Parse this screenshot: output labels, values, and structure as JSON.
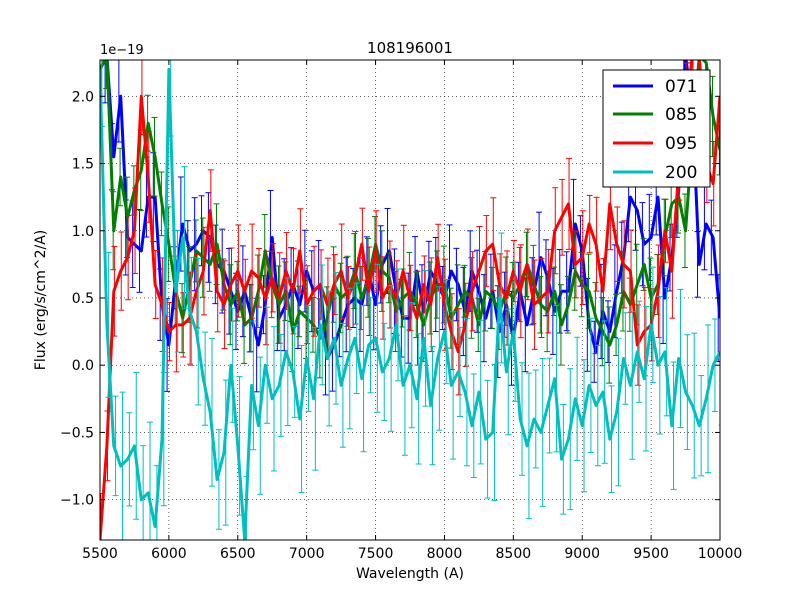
{
  "chart_data": {
    "type": "line",
    "title": "108196001",
    "xlabel": "Wavelength (A)",
    "ylabel": "Flux (erg/s/cm^2/A)",
    "y_offset_text": "1e−19",
    "xlim": [
      5500,
      10000
    ],
    "ylim": [
      -1.3,
      2.27
    ],
    "x_ticks": [
      5500,
      6000,
      6500,
      7000,
      7500,
      8000,
      8500,
      9000,
      9500,
      10000
    ],
    "x_tick_labels": [
      "5500",
      "6000",
      "6500",
      "7000",
      "7500",
      "8000",
      "8500",
      "9000",
      "9500",
      "10000"
    ],
    "y_ticks": [
      -1.0,
      -0.5,
      0.0,
      0.5,
      1.0,
      1.5,
      2.0
    ],
    "y_tick_labels": [
      "−1.0",
      "−0.5",
      "0.0",
      "0.5",
      "1.0",
      "1.5",
      "2.0"
    ],
    "grid": true,
    "legend_position": "top-right",
    "series": [
      {
        "name": "071",
        "color": "#0000ff",
        "x": [
          5500,
          5550,
          5600,
          5650,
          5700,
          5750,
          5800,
          5850,
          5900,
          5950,
          6000,
          6050,
          6100,
          6150,
          6200,
          6250,
          6300,
          6350,
          6400,
          6450,
          6500,
          6550,
          6600,
          6650,
          6700,
          6750,
          6800,
          6850,
          6900,
          6950,
          7000,
          7050,
          7100,
          7150,
          7200,
          7250,
          7300,
          7350,
          7400,
          7450,
          7500,
          7550,
          7600,
          7650,
          7700,
          7750,
          7800,
          7850,
          7900,
          7950,
          8000,
          8050,
          8100,
          8150,
          8200,
          8250,
          8300,
          8350,
          8400,
          8450,
          8500,
          8550,
          8600,
          8650,
          8700,
          8750,
          8800,
          8850,
          8900,
          8950,
          9000,
          9050,
          9100,
          9150,
          9200,
          9250,
          9300,
          9350,
          9400,
          9450,
          9500,
          9550,
          9600,
          9650,
          9700,
          9750,
          9800,
          9850,
          9900,
          9950,
          10000
        ],
        "values": [
          2.2,
          2.3,
          1.55,
          2.0,
          0.95,
          0.9,
          0.85,
          1.25,
          1.25,
          0.45,
          0.15,
          0.65,
          1.05,
          0.85,
          0.9,
          1.0,
          0.95,
          0.75,
          0.7,
          0.55,
          0.4,
          0.55,
          0.35,
          0.15,
          0.45,
          0.95,
          0.35,
          0.45,
          0.6,
          0.45,
          0.7,
          0.55,
          0.6,
          0.05,
          0.15,
          0.3,
          0.45,
          0.5,
          0.45,
          0.7,
          0.45,
          0.75,
          0.85,
          0.55,
          0.35,
          0.35,
          0.7,
          0.4,
          0.7,
          0.6,
          0.5,
          0.7,
          0.6,
          0.4,
          0.7,
          0.55,
          0.35,
          0.55,
          0.25,
          0.45,
          0.2,
          0.55,
          0.3,
          0.55,
          0.8,
          0.65,
          0.4,
          0.55,
          0.55,
          1.05,
          0.85,
          0.3,
          0.1,
          0.4,
          0.25,
          0.55,
          0.8,
          1.25,
          1.15,
          0.9,
          0.95,
          1.25,
          0.5,
          0.8,
          1.3,
          2.3,
          1.9,
          0.75,
          1.05,
          0.95,
          0.35
        ]
      },
      {
        "name": "085",
        "color": "#008000",
        "x": [
          5500,
          5550,
          5600,
          5650,
          5700,
          5750,
          5800,
          5850,
          5900,
          5950,
          6000,
          6050,
          6100,
          6150,
          6200,
          6250,
          6300,
          6350,
          6400,
          6450,
          6500,
          6550,
          6600,
          6650,
          6700,
          6750,
          6800,
          6850,
          6900,
          6950,
          7000,
          7050,
          7100,
          7150,
          7200,
          7250,
          7300,
          7350,
          7400,
          7450,
          7500,
          7550,
          7600,
          7650,
          7700,
          7750,
          7800,
          7850,
          7900,
          7950,
          8000,
          8050,
          8100,
          8150,
          8200,
          8250,
          8300,
          8350,
          8400,
          8450,
          8500,
          8550,
          8600,
          8650,
          8700,
          8750,
          8800,
          8850,
          8900,
          8950,
          9000,
          9050,
          9100,
          9150,
          9200,
          9250,
          9300,
          9350,
          9400,
          9450,
          9500,
          9550,
          9600,
          9650,
          9700,
          9750,
          9800,
          9850,
          9900,
          9950,
          10000
        ],
        "values": [
          2.2,
          2.3,
          1.0,
          1.4,
          1.1,
          1.3,
          1.45,
          1.8,
          1.55,
          1.2,
          0.9,
          0.55,
          0.35,
          0.6,
          0.85,
          0.8,
          0.75,
          0.9,
          0.6,
          0.45,
          0.55,
          0.3,
          0.35,
          0.55,
          0.85,
          0.6,
          0.45,
          0.55,
          0.25,
          0.4,
          0.35,
          0.3,
          0.2,
          0.35,
          0.6,
          0.5,
          0.55,
          0.7,
          0.5,
          0.65,
          0.9,
          0.7,
          0.65,
          0.4,
          0.5,
          0.55,
          0.45,
          0.3,
          0.5,
          0.6,
          0.6,
          0.35,
          0.45,
          0.55,
          0.5,
          0.3,
          0.55,
          0.5,
          0.4,
          0.55,
          0.5,
          0.6,
          0.75,
          0.6,
          0.45,
          0.4,
          0.55,
          0.3,
          0.45,
          0.7,
          0.6,
          0.55,
          0.35,
          0.25,
          0.15,
          0.3,
          0.55,
          0.45,
          0.6,
          0.75,
          0.5,
          0.6,
          0.95,
          1.2,
          1.25,
          1.0,
          1.7,
          2.3,
          2.25,
          1.85,
          1.6
        ]
      },
      {
        "name": "095",
        "color": "#ff0000",
        "x": [
          5500,
          5550,
          5600,
          5650,
          5700,
          5750,
          5800,
          5850,
          5900,
          5950,
          6000,
          6050,
          6100,
          6150,
          6200,
          6250,
          6300,
          6350,
          6400,
          6450,
          6500,
          6550,
          6600,
          6650,
          6700,
          6750,
          6800,
          6850,
          6900,
          6950,
          7000,
          7050,
          7100,
          7150,
          7200,
          7250,
          7300,
          7350,
          7400,
          7450,
          7500,
          7550,
          7600,
          7650,
          7700,
          7750,
          7800,
          7850,
          7900,
          7950,
          8000,
          8050,
          8100,
          8150,
          8200,
          8250,
          8300,
          8350,
          8400,
          8450,
          8500,
          8550,
          8600,
          8650,
          8700,
          8750,
          8800,
          8850,
          8900,
          8950,
          9000,
          9050,
          9100,
          9150,
          9200,
          9250,
          9300,
          9350,
          9400,
          9450,
          9500,
          9550,
          9600,
          9650,
          9700,
          9750,
          9800,
          9850,
          9900,
          9950,
          10000
        ],
        "values": [
          -1.3,
          -0.6,
          0.55,
          0.7,
          0.8,
          1.0,
          2.0,
          1.4,
          0.6,
          0.45,
          0.25,
          0.3,
          0.3,
          0.35,
          0.55,
          0.7,
          1.15,
          0.55,
          0.45,
          0.6,
          0.7,
          0.55,
          0.7,
          0.65,
          0.5,
          0.65,
          0.5,
          0.7,
          0.55,
          0.85,
          0.45,
          0.55,
          0.6,
          0.45,
          0.6,
          0.7,
          0.5,
          0.65,
          0.9,
          0.55,
          0.85,
          0.5,
          0.6,
          0.5,
          0.7,
          0.5,
          0.35,
          0.6,
          0.45,
          0.8,
          0.45,
          0.25,
          0.1,
          0.3,
          0.55,
          0.7,
          0.85,
          0.9,
          0.6,
          0.5,
          0.7,
          0.55,
          0.75,
          0.45,
          0.5,
          0.55,
          1.0,
          1.1,
          1.2,
          0.75,
          0.8,
          1.05,
          0.9,
          0.55,
          1.2,
          0.9,
          0.75,
          0.7,
          0.15,
          0.25,
          0.3,
          0.55,
          1.0,
          0.7,
          1.45,
          1.9,
          2.3,
          2.3,
          1.5,
          1.35,
          2.0
        ]
      },
      {
        "name": "200",
        "color": "#00bfbf",
        "x": [
          5500,
          5550,
          5600,
          5650,
          5700,
          5750,
          5800,
          5850,
          5900,
          5950,
          6000,
          6050,
          6100,
          6150,
          6200,
          6250,
          6300,
          6350,
          6400,
          6450,
          6500,
          6550,
          6600,
          6650,
          6700,
          6750,
          6800,
          6850,
          6900,
          6950,
          7000,
          7050,
          7100,
          7150,
          7200,
          7250,
          7300,
          7350,
          7400,
          7450,
          7500,
          7550,
          7600,
          7650,
          7700,
          7750,
          7800,
          7850,
          7900,
          7950,
          8000,
          8050,
          8100,
          8150,
          8200,
          8250,
          8300,
          8350,
          8400,
          8450,
          8500,
          8550,
          8600,
          8650,
          8700,
          8750,
          8800,
          8850,
          8900,
          8950,
          9000,
          9050,
          9100,
          9150,
          9200,
          9250,
          9300,
          9350,
          9400,
          9450,
          9500,
          9550,
          9600,
          9650,
          9700,
          9750,
          9800,
          9850,
          9900,
          9950,
          10000
        ],
        "values": [
          2.2,
          0.3,
          -0.6,
          -0.75,
          -0.7,
          -0.6,
          -1.0,
          -0.95,
          -1.2,
          -0.55,
          2.2,
          0.55,
          0.95,
          0.4,
          0.25,
          -0.1,
          -0.35,
          -0.85,
          -0.65,
          0.0,
          -0.6,
          -1.3,
          -0.15,
          -0.45,
          0.0,
          -0.25,
          -0.15,
          0.1,
          -0.05,
          -0.4,
          0.05,
          -0.25,
          0.3,
          0.05,
          0.2,
          -0.15,
          0.05,
          0.2,
          -0.1,
          0.15,
          0.2,
          -0.05,
          0.05,
          0.3,
          -0.15,
          0.0,
          -0.25,
          0.2,
          -0.3,
          0.05,
          0.25,
          -0.15,
          -0.05,
          -0.2,
          -0.45,
          -0.2,
          -0.55,
          -0.5,
          0.5,
          -0.05,
          0.25,
          -0.4,
          -0.6,
          -0.4,
          -0.5,
          -0.3,
          -0.1,
          -0.7,
          -0.55,
          -0.25,
          -0.45,
          -0.15,
          -0.3,
          -0.2,
          -0.55,
          -0.35,
          0.05,
          -0.15,
          0.1,
          -0.1,
          0.3,
          0.0,
          0.1,
          -0.45,
          0.05,
          -0.2,
          -0.3,
          -0.45,
          -0.25,
          0.0,
          0.1
        ]
      }
    ]
  }
}
